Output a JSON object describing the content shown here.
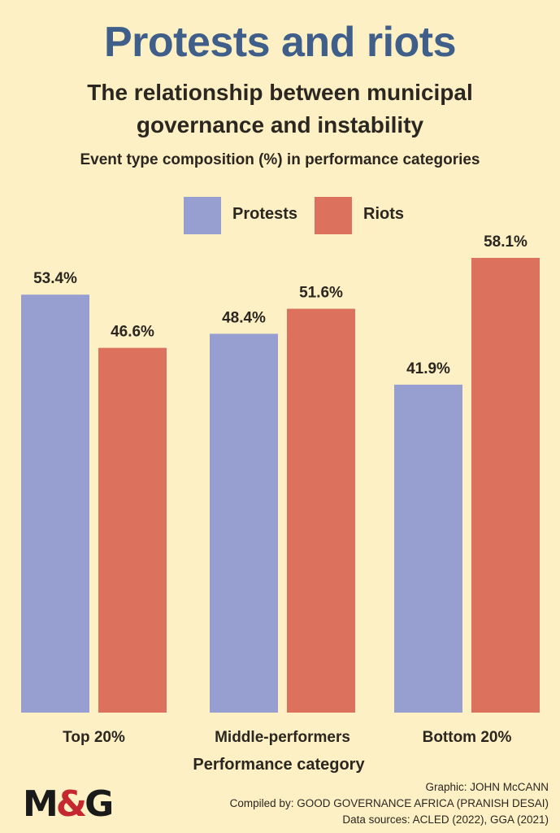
{
  "header": {
    "title": "Protests and riots",
    "subtitle_line1": "The relationship between municipal",
    "subtitle_line2": "governance and instability",
    "description": "Event type composition (%) in performance categories"
  },
  "legend": {
    "items": [
      {
        "label": "Protests",
        "color": "#969fd0"
      },
      {
        "label": "Riots",
        "color": "#dc725e"
      }
    ]
  },
  "chart_data": {
    "type": "bar",
    "title": "Protests and riots",
    "subtitle": "The relationship between municipal governance and instability",
    "xlabel": "Performance category",
    "ylabel": "",
    "ylim": [
      0,
      58.1
    ],
    "grid": false,
    "legend_position": "top-center",
    "categories": [
      "Top 20%",
      "Middle-performers",
      "Bottom 20%"
    ],
    "series": [
      {
        "name": "Protests",
        "color": "#969fd0",
        "values": [
          53.4,
          48.4,
          41.9
        ],
        "labels": [
          "53.4%",
          "48.4%",
          "41.9%"
        ]
      },
      {
        "name": "Riots",
        "color": "#dc725e",
        "values": [
          46.6,
          51.6,
          58.1
        ],
        "labels": [
          "46.6%",
          "51.6%",
          "58.1%"
        ]
      }
    ]
  },
  "footer": {
    "graphic": "Graphic: JOHN McCANN",
    "compiled": "Compiled by: GOOD GOVERNANCE AFRICA (PRANISH DESAI)",
    "sources": "Data sources: ACLED (2022), GGA (2021)"
  },
  "logo": {
    "left": "M",
    "amp": "&",
    "right": "G"
  }
}
